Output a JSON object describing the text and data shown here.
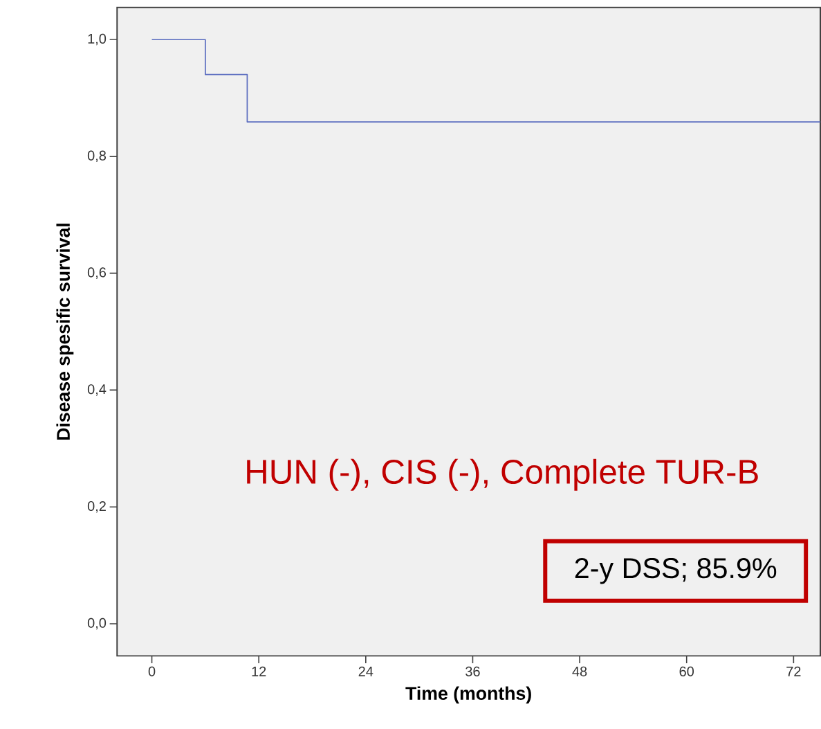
{
  "chart_data": {
    "type": "step",
    "xlabel": "Time (months)",
    "ylabel": "Disease spesific survival",
    "annotations": [
      "HUN (-), CIS (-), Complete TUR-B",
      "2-y DSS; 85.9%"
    ],
    "series": [
      {
        "color": "#5a6cbf",
        "x": [
          0,
          6,
          10.7,
          75
        ],
        "values": [
          1.0,
          0.94,
          0.859,
          0.859
        ]
      }
    ],
    "xlim": [
      -3.9,
      75
    ],
    "xticks": [
      0,
      12,
      24,
      36,
      48,
      60,
      72
    ],
    "ylim": [
      -0.055,
      1.055
    ],
    "yticks": [
      {
        "value": 0,
        "label": "0,0"
      },
      {
        "value": 0.2,
        "label": "0,2"
      },
      {
        "value": 0.4,
        "label": "0,4"
      },
      {
        "value": 0.6,
        "label": "0,6"
      },
      {
        "value": 0.8,
        "label": "0,8"
      },
      {
        "value": 1.0,
        "label": "1,0"
      }
    ],
    "grid": false,
    "marker": "none",
    "line_style": "solid"
  }
}
